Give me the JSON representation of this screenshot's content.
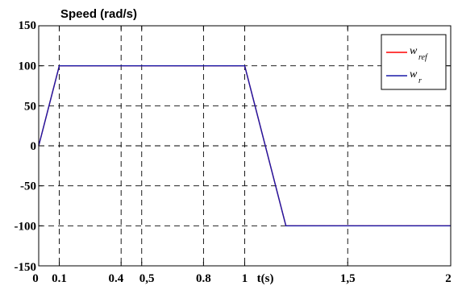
{
  "chart_data": {
    "type": "line",
    "title": "Speed (rad/s)",
    "xlabel": "t(s)",
    "ylabel": "",
    "xlim": [
      0,
      2
    ],
    "ylim": [
      -150,
      150
    ],
    "grid": true,
    "legend_position": "top-right",
    "x_ticks": [
      0,
      0.1,
      0.4,
      0.5,
      0.8,
      1,
      1.5,
      2
    ],
    "x_tick_labels": [
      "0",
      "0.1",
      "0.4",
      "0,5",
      "0.8",
      "1",
      "1,5",
      "2"
    ],
    "y_ticks": [
      -150,
      -100,
      -50,
      0,
      50,
      100,
      150
    ],
    "y_tick_labels": [
      "-150",
      "-100",
      "-50",
      "0",
      "50",
      "100",
      "150"
    ],
    "series": [
      {
        "name": "w_ref",
        "label_main": "w",
        "label_sub": "ref",
        "color": "#ff0000",
        "x": [
          0,
          0.1,
          1,
          1.2,
          2
        ],
        "y": [
          0,
          100,
          100,
          -100,
          -100
        ]
      },
      {
        "name": "w_r",
        "label_main": "w",
        "label_sub": "r",
        "color": "#1a1aa8",
        "x": [
          0,
          0.1,
          1,
          1.2,
          2
        ],
        "y": [
          0,
          100,
          100,
          -100,
          -100
        ]
      }
    ]
  }
}
